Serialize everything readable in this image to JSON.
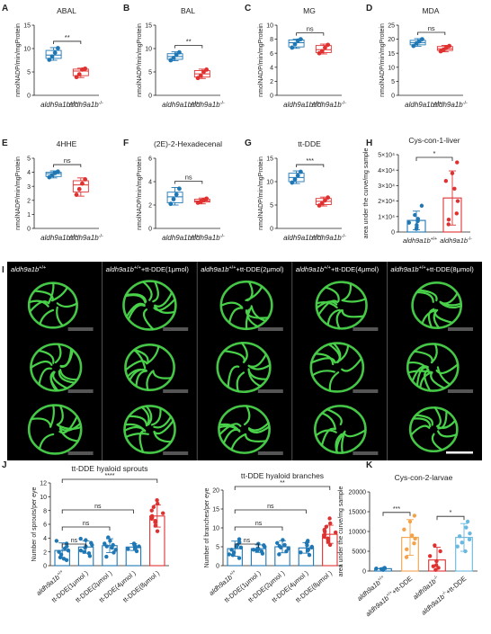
{
  "colors": {
    "blue": "#1f77b4",
    "red": "#e03131",
    "orange": "#f2a34a",
    "skyblue": "#6ab7df",
    "cell": "#49d14a"
  },
  "chart_data": [
    {
      "panel": "A",
      "type": "box",
      "title": "ABAL",
      "ylabel": "nmolNADP/min/mgProtein",
      "ylim": [
        0,
        15
      ],
      "yticks": [
        0,
        5,
        10,
        15
      ],
      "categories": [
        "aldh9a1b+/+",
        "aldh9a1b-/-"
      ],
      "groups": [
        {
          "min": 7.5,
          "q1": 7.9,
          "median": 8.6,
          "q3": 9.6,
          "max": 10.2,
          "points": [
            7.6,
            8.3,
            9.1,
            10.1
          ]
        },
        {
          "min": 3.8,
          "q1": 4.2,
          "median": 5.2,
          "q3": 5.6,
          "max": 5.8,
          "points": [
            3.9,
            4.5,
            5.5,
            5.7
          ]
        }
      ],
      "sig": "**"
    },
    {
      "panel": "B",
      "type": "box",
      "title": "BAL",
      "ylabel": "nmolNADP/min/mgProtein",
      "ylim": [
        0,
        15
      ],
      "yticks": [
        0,
        5,
        10,
        15
      ],
      "categories": [
        "aldh9a1b+/+",
        "aldh9a1b-/-"
      ],
      "groups": [
        {
          "min": 7.4,
          "q1": 7.7,
          "median": 8.3,
          "q3": 8.9,
          "max": 9.3,
          "points": [
            7.5,
            8.0,
            8.7,
            9.2
          ]
        },
        {
          "min": 3.6,
          "q1": 3.9,
          "median": 4.6,
          "q3": 5.3,
          "max": 5.6,
          "points": [
            3.7,
            4.2,
            5.0,
            5.5
          ]
        }
      ],
      "sig": "**"
    },
    {
      "panel": "C",
      "type": "box",
      "title": "MG",
      "ylabel": "nmolNADP/min/mgProtein",
      "ylim": [
        0,
        10
      ],
      "yticks": [
        0,
        2,
        4,
        6,
        8,
        10
      ],
      "categories": [
        "aldh9a1b+/+",
        "aldh9a1b-/-"
      ],
      "groups": [
        {
          "min": 6.7,
          "q1": 6.9,
          "median": 7.5,
          "q3": 7.9,
          "max": 8.0,
          "points": [
            6.8,
            7.3,
            7.8,
            8.0
          ]
        },
        {
          "min": 5.9,
          "q1": 6.1,
          "median": 6.5,
          "q3": 7.1,
          "max": 7.3,
          "points": [
            6.0,
            6.3,
            6.8,
            7.2
          ]
        }
      ],
      "sig": "ns"
    },
    {
      "panel": "D",
      "type": "box",
      "title": "MDA",
      "ylabel": "nmolNADP/min/mgProtein",
      "ylim": [
        0,
        25
      ],
      "yticks": [
        0,
        5,
        10,
        15,
        20,
        25
      ],
      "categories": [
        "aldh9a1b+/+",
        "aldh9a1b-/-"
      ],
      "groups": [
        {
          "min": 17.5,
          "q1": 18.0,
          "median": 18.8,
          "q3": 19.6,
          "max": 20.2,
          "points": [
            17.6,
            18.5,
            19.2,
            20.0
          ]
        },
        {
          "min": 15.5,
          "q1": 16.0,
          "median": 16.6,
          "q3": 17.4,
          "max": 17.8,
          "points": [
            15.7,
            16.3,
            17.0,
            17.6
          ]
        }
      ],
      "sig": "ns"
    },
    {
      "panel": "E",
      "type": "box",
      "title": "4HHE",
      "ylabel": "nmolNADP/min/mgProtein",
      "ylim": [
        0,
        5
      ],
      "yticks": [
        0,
        1,
        2,
        3,
        4,
        5
      ],
      "categories": [
        "aldh9a1b+/+",
        "aldh9a1b-/-"
      ],
      "groups": [
        {
          "min": 3.6,
          "q1": 3.7,
          "median": 3.9,
          "q3": 4.0,
          "max": 4.1,
          "points": [
            3.65,
            3.8,
            3.95,
            4.05
          ]
        },
        {
          "min": 2.3,
          "q1": 2.6,
          "median": 3.1,
          "q3": 3.4,
          "max": 3.6,
          "points": [
            2.4,
            2.8,
            3.2,
            3.5
          ]
        }
      ],
      "sig": "ns"
    },
    {
      "panel": "F",
      "type": "box",
      "title": "(2E)-2-Hexadecenal",
      "ylabel": "nmolNADP/min/mgProtein",
      "ylim": [
        0,
        6
      ],
      "yticks": [
        0,
        2,
        4,
        6
      ],
      "categories": [
        "aldh9a1b+/+",
        "aldh9a1b-/-"
      ],
      "groups": [
        {
          "min": 2.0,
          "q1": 2.2,
          "median": 2.7,
          "q3": 3.1,
          "max": 3.5,
          "points": [
            2.1,
            2.5,
            2.9,
            3.4
          ]
        },
        {
          "min": 2.1,
          "q1": 2.25,
          "median": 2.35,
          "q3": 2.5,
          "max": 2.6,
          "points": [
            2.2,
            2.3,
            2.4,
            2.55
          ]
        }
      ],
      "sig": "ns"
    },
    {
      "panel": "G",
      "type": "box",
      "title": "tt-DDE",
      "ylabel": "nmolNADP/min/mgProtein",
      "ylim": [
        0,
        15
      ],
      "yticks": [
        0,
        5,
        10,
        15
      ],
      "categories": [
        "aldh9a1b+/+",
        "aldh9a1b-/-"
      ],
      "groups": [
        {
          "min": 9.6,
          "q1": 10.0,
          "median": 10.9,
          "q3": 11.8,
          "max": 12.3,
          "points": [
            9.8,
            10.5,
            11.3,
            12.1
          ]
        },
        {
          "min": 4.8,
          "q1": 5.1,
          "median": 5.8,
          "q3": 6.4,
          "max": 6.7,
          "points": [
            4.9,
            5.4,
            6.0,
            6.6
          ]
        }
      ],
      "sig": "***"
    },
    {
      "panel": "H",
      "type": "bar_dot",
      "title": "Cys-con-1-liver",
      "ylabel": "area under the curve/mg sample",
      "ylim": [
        0,
        50000
      ],
      "yticks": [
        0,
        10000,
        20000,
        30000,
        40000,
        50000
      ],
      "ytick_labels": [
        "0",
        "1×10⁴",
        "2×10⁴",
        "3×10⁴",
        "4×10⁴",
        "5×10⁴"
      ],
      "categories": [
        "aldh9a1b+/+",
        "aldh9a1b-/-"
      ],
      "groups": [
        {
          "mean": 7500,
          "sd": 6000,
          "points": [
            2000,
            3000,
            4500,
            6000,
            7000,
            8500,
            11000,
            17000
          ]
        },
        {
          "mean": 22000,
          "sd": 17500,
          "points": [
            5000,
            8000,
            12000,
            20000,
            28000,
            33000,
            38000,
            45000
          ]
        }
      ],
      "sig": "*"
    },
    {
      "panel": "J1",
      "type": "bar_dot",
      "title": "tt-DDE hyaloid sprouts",
      "ylabel": "Number of sprouts/per eye",
      "ylim": [
        0,
        12
      ],
      "yticks": [
        0,
        2,
        4,
        6,
        8,
        10,
        12
      ],
      "categories": [
        "aldh9a1b+/+",
        "tt-DDE(1μmol )",
        "tt-DDE(2μmol )",
        "tt-DDE(4μmol )",
        "tt-DDE(8μmol )"
      ],
      "groups": [
        {
          "mean": 2.2,
          "sd": 1.1,
          "points": [
            0.8,
            1.2,
            1.6,
            2.0,
            2.2,
            2.5,
            2.8,
            3.2,
            3.6,
            1.0
          ]
        },
        {
          "mean": 2.7,
          "sd": 0.9,
          "points": [
            1.4,
            1.8,
            2.2,
            2.6,
            3.0,
            3.3,
            3.7,
            2.0,
            2.8,
            3.9
          ]
        },
        {
          "mean": 2.9,
          "sd": 1.0,
          "points": [
            1.3,
            1.9,
            2.3,
            2.8,
            3.2,
            3.6,
            4.1,
            2.6,
            3.0
          ]
        },
        {
          "mean": 2.7,
          "sd": 0.5,
          "points": [
            2.1,
            2.4,
            2.6,
            2.8,
            3.0,
            3.2,
            2.5,
            2.9
          ]
        },
        {
          "mean": 7.2,
          "sd": 1.6,
          "points": [
            5.0,
            5.8,
            6.3,
            6.8,
            7.2,
            7.6,
            8.0,
            8.5,
            9.0,
            9.5,
            6.5,
            7.0
          ]
        }
      ],
      "comparisons": [
        {
          "to": 1,
          "sig": "ns"
        },
        {
          "to": 2,
          "sig": "ns"
        },
        {
          "to": 3,
          "sig": "ns"
        },
        {
          "to": 4,
          "sig": "****"
        }
      ]
    },
    {
      "panel": "J2",
      "type": "bar_dot",
      "title": "tt-DDE hyaloid branches",
      "ylabel": "Number of branches/per eye",
      "ylim": [
        0,
        20
      ],
      "yticks": [
        0,
        5,
        10,
        15,
        20
      ],
      "categories": [
        "aldh9a1b+/+",
        "tt-DDE(1μmol )",
        "tt-DDE(2μmol )",
        "tt-DDE(4μmol )",
        "tt-DDE(8μmol )"
      ],
      "groups": [
        {
          "mean": 4.5,
          "sd": 2.0,
          "points": [
            2.0,
            2.8,
            3.5,
            4.2,
            4.8,
            5.5,
            6.2,
            7.0,
            3.0,
            5.0
          ]
        },
        {
          "mean": 4.5,
          "sd": 1.0,
          "points": [
            3.2,
            3.8,
            4.2,
            4.6,
            5.0,
            5.4,
            5.8,
            4.0,
            4.4
          ]
        },
        {
          "mean": 5.0,
          "sd": 1.6,
          "points": [
            3.0,
            3.8,
            4.5,
            5.2,
            6.0,
            6.8,
            4.8,
            5.5
          ]
        },
        {
          "mean": 4.7,
          "sd": 1.4,
          "points": [
            2.8,
            3.5,
            4.2,
            4.8,
            5.4,
            6.0,
            6.6,
            4.0,
            5.0
          ]
        },
        {
          "mean": 8.3,
          "sd": 2.4,
          "points": [
            5.5,
            6.3,
            7.0,
            7.6,
            8.2,
            8.8,
            9.5,
            10.3,
            11.2,
            12.5,
            7.2,
            9.0
          ]
        }
      ],
      "comparisons": [
        {
          "to": 1,
          "sig": "ns"
        },
        {
          "to": 2,
          "sig": "ns"
        },
        {
          "to": 3,
          "sig": "ns"
        },
        {
          "to": 4,
          "sig": "**"
        }
      ]
    },
    {
      "panel": "K",
      "type": "bar_dot",
      "title": "Cys-con-2-larvae",
      "ylabel": "area under the curve/mg sample",
      "ylim": [
        0,
        20000
      ],
      "yticks": [
        0,
        5000,
        10000,
        15000,
        20000
      ],
      "categories": [
        "aldh9a1b+/+",
        "aldh9a1b+/++tt-DDE",
        "aldh9a1b-/-",
        "aldh9a1b-/-+tt-DDE"
      ],
      "groups": [
        {
          "mean": 600,
          "sd": 200,
          "points": [
            300,
            450,
            550,
            650,
            750,
            800,
            500
          ]
        },
        {
          "mean": 8500,
          "sd": 4500,
          "points": [
            3500,
            5500,
            7000,
            8200,
            9000,
            10500,
            12500,
            14000
          ]
        },
        {
          "mean": 2800,
          "sd": 3200,
          "points": [
            300,
            800,
            1500,
            2500,
            3800,
            5000,
            6500,
            1200
          ]
        },
        {
          "mean": 8500,
          "sd": 3500,
          "points": [
            5000,
            6200,
            7200,
            8000,
            8800,
            9500,
            11000,
            12500
          ]
        }
      ],
      "colors": [
        "blue",
        "orange",
        "red",
        "skyblue"
      ],
      "comparisons": [
        {
          "from": 0,
          "to": 1,
          "sig": "***"
        },
        {
          "from": 2,
          "to": 3,
          "sig": "*"
        }
      ]
    }
  ],
  "microscopy": {
    "panel": "I",
    "column_labels": [
      "aldh9a1b+/+",
      "aldh9a1b+/++tt-DDE(1μmol)",
      "aldh9a1b+/++tt-DDE(2μmol)",
      "aldh9a1b+/++tt-DDE(4μmol)",
      "aldh9a1b+/++tt-DDE(8μmol)"
    ],
    "rows": 3
  },
  "panel_letters": [
    "A",
    "B",
    "C",
    "D",
    "E",
    "F",
    "G",
    "H",
    "I",
    "J",
    "K"
  ]
}
